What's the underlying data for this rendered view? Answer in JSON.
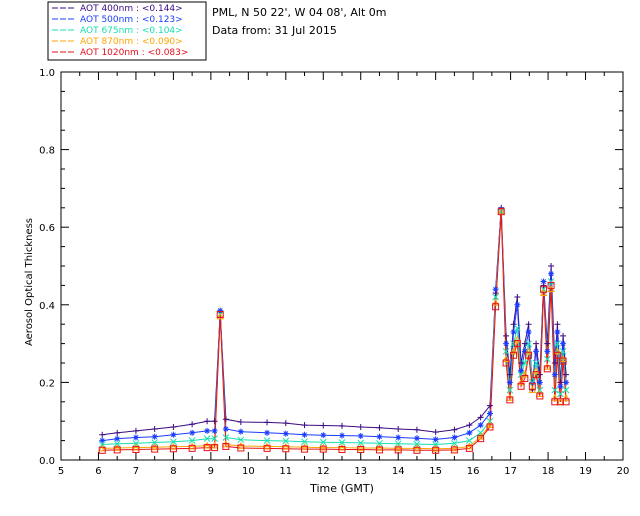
{
  "chart_data": {
    "type": "line",
    "header": {
      "location": "PML, N 50 22', W 04 08', Alt 0m",
      "date": "Data from: 31 Jul 2015"
    },
    "xlabel": "Time (GMT)",
    "ylabel": "Aerosol Optical Thickness",
    "xlim": [
      5,
      20
    ],
    "ylim": [
      0.0,
      1.0
    ],
    "xticks": [
      "5",
      "6",
      "7",
      "8",
      "9",
      "10",
      "11",
      "12",
      "13",
      "14",
      "15",
      "16",
      "17",
      "18",
      "19",
      "20"
    ],
    "yticks": [
      "0.0",
      "0.2",
      "0.4",
      "0.6",
      "0.8",
      "1.0"
    ],
    "x": [
      6.1,
      6.5,
      7.0,
      7.5,
      8.0,
      8.5,
      8.9,
      9.1,
      9.25,
      9.4,
      9.8,
      10.5,
      11.0,
      11.5,
      12.0,
      12.5,
      13.0,
      13.5,
      14.0,
      14.5,
      15.0,
      15.5,
      15.9,
      16.2,
      16.45,
      16.6,
      16.75,
      16.88,
      16.98,
      17.08,
      17.18,
      17.28,
      17.38,
      17.48,
      17.58,
      17.68,
      17.78,
      17.88,
      17.98,
      18.08,
      18.18,
      18.25,
      18.33,
      18.4,
      18.48
    ],
    "series": [
      {
        "name": "AOT  400nm",
        "mean_label": "<0.144>",
        "color": "#3a0a80",
        "marker": "plus",
        "values": [
          0.065,
          0.07,
          0.075,
          0.08,
          0.085,
          0.092,
          0.1,
          0.1,
          0.38,
          0.105,
          0.098,
          0.097,
          0.095,
          0.09,
          0.089,
          0.088,
          0.085,
          0.083,
          0.08,
          0.078,
          0.072,
          0.078,
          0.09,
          0.11,
          0.14,
          0.43,
          0.65,
          0.32,
          0.22,
          0.35,
          0.42,
          0.25,
          0.3,
          0.35,
          0.18,
          0.3,
          0.22,
          0.45,
          0.3,
          0.5,
          0.25,
          0.35,
          0.2,
          0.32,
          0.22
        ]
      },
      {
        "name": "AOT  500nm",
        "mean_label": "<0.123>",
        "color": "#1a3cff",
        "marker": "star",
        "values": [
          0.05,
          0.055,
          0.058,
          0.06,
          0.065,
          0.07,
          0.075,
          0.075,
          0.385,
          0.08,
          0.073,
          0.07,
          0.068,
          0.065,
          0.064,
          0.063,
          0.062,
          0.06,
          0.058,
          0.056,
          0.053,
          0.058,
          0.07,
          0.09,
          0.12,
          0.44,
          0.645,
          0.3,
          0.2,
          0.33,
          0.4,
          0.23,
          0.28,
          0.33,
          0.2,
          0.28,
          0.2,
          0.46,
          0.28,
          0.48,
          0.22,
          0.33,
          0.19,
          0.3,
          0.2
        ]
      },
      {
        "name": "AOT  675nm",
        "mean_label": "<0.104>",
        "color": "#18e0b0",
        "marker": "x",
        "values": [
          0.04,
          0.042,
          0.043,
          0.045,
          0.047,
          0.05,
          0.055,
          0.055,
          0.375,
          0.058,
          0.052,
          0.05,
          0.049,
          0.047,
          0.046,
          0.045,
          0.044,
          0.043,
          0.042,
          0.041,
          0.04,
          0.043,
          0.05,
          0.07,
          0.1,
          0.42,
          0.64,
          0.28,
          0.18,
          0.3,
          0.34,
          0.22,
          0.25,
          0.3,
          0.2,
          0.25,
          0.18,
          0.44,
          0.26,
          0.46,
          0.18,
          0.3,
          0.17,
          0.28,
          0.18
        ]
      },
      {
        "name": "AOT  870nm",
        "mean_label": "<0.090>",
        "color": "#ffa500",
        "marker": "triangle",
        "values": [
          0.03,
          0.031,
          0.032,
          0.033,
          0.034,
          0.035,
          0.037,
          0.037,
          0.37,
          0.04,
          0.036,
          0.035,
          0.034,
          0.033,
          0.032,
          0.032,
          0.031,
          0.031,
          0.03,
          0.03,
          0.029,
          0.03,
          0.035,
          0.06,
          0.09,
          0.405,
          0.64,
          0.26,
          0.16,
          0.28,
          0.31,
          0.2,
          0.22,
          0.28,
          0.18,
          0.23,
          0.17,
          0.43,
          0.24,
          0.44,
          0.16,
          0.28,
          0.15,
          0.26,
          0.16
        ]
      },
      {
        "name": "AOT 1020nm",
        "mean_label": "<0.083>",
        "color": "#e8101c",
        "marker": "square",
        "values": [
          0.025,
          0.026,
          0.027,
          0.028,
          0.029,
          0.03,
          0.032,
          0.032,
          0.375,
          0.035,
          0.031,
          0.03,
          0.029,
          0.028,
          0.028,
          0.027,
          0.027,
          0.026,
          0.026,
          0.025,
          0.025,
          0.026,
          0.03,
          0.055,
          0.085,
          0.395,
          0.64,
          0.25,
          0.155,
          0.27,
          0.3,
          0.19,
          0.21,
          0.27,
          0.19,
          0.22,
          0.165,
          0.44,
          0.235,
          0.45,
          0.15,
          0.27,
          0.15,
          0.255,
          0.15
        ]
      }
    ],
    "legend_placement": "top-left, outside plot"
  }
}
